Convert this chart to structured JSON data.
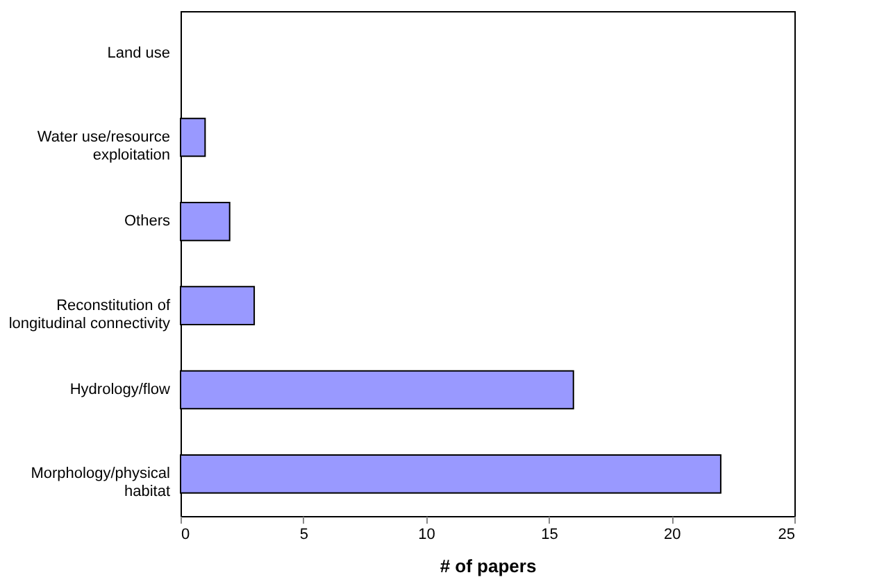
{
  "chart_data": {
    "type": "bar",
    "orientation": "horizontal",
    "xlabel": "# of papers",
    "categories": [
      "Land use",
      "Water use/resource\nexploitation",
      "Others",
      "Reconstitution of\nlongitudinal connectivity",
      "Hydrology/flow",
      "Morphology/physical\nhabitat"
    ],
    "values": [
      0,
      1,
      2,
      3,
      16,
      22
    ],
    "color": "#9999ff",
    "xlim": [
      0,
      25
    ],
    "xticks": [
      0,
      5,
      10,
      15,
      20,
      25
    ],
    "grid": false
  }
}
